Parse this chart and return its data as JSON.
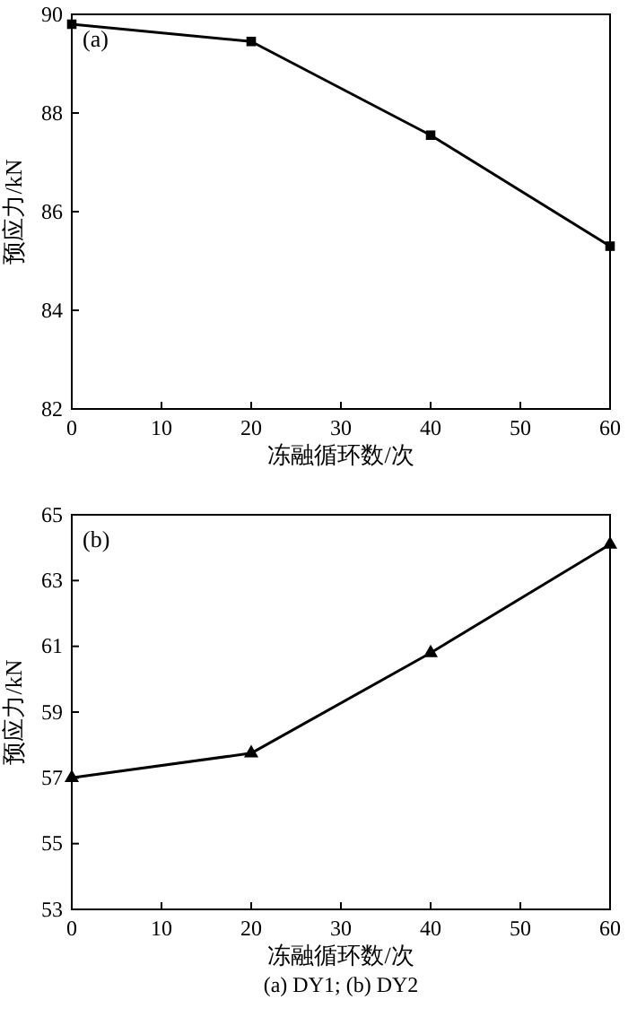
{
  "chart_data": [
    {
      "type": "line",
      "x": [
        0,
        20,
        40,
        60
      ],
      "values": [
        89.8,
        89.45,
        87.55,
        85.3
      ],
      "color": "#000000",
      "marker": "square",
      "line_style": "solid",
      "xlim": [
        0,
        60
      ],
      "xticks": [
        0,
        10,
        20,
        30,
        40,
        50,
        60
      ],
      "ylim": [
        82,
        90
      ],
      "yticks": [
        82,
        84,
        86,
        88,
        90
      ],
      "xlabel": "冻融循环数/次",
      "ylabel": "预应力/kN",
      "annotations": [
        "(a)"
      ],
      "grid": false
    },
    {
      "type": "line",
      "x": [
        0,
        20,
        40,
        60
      ],
      "values": [
        57.0,
        57.75,
        60.8,
        64.1
      ],
      "color": "#000000",
      "marker": "triangle",
      "line_style": "solid",
      "xlim": [
        0,
        60
      ],
      "xticks": [
        0,
        10,
        20,
        30,
        40,
        50,
        60
      ],
      "ylim": [
        53,
        65
      ],
      "yticks": [
        53,
        55,
        57,
        59,
        61,
        63,
        65
      ],
      "xlabel": "冻融循环数/次",
      "ylabel": "预应力/kN",
      "annotations": [
        "(b)",
        "(a) DY1; (b) DY2"
      ],
      "grid": false
    }
  ]
}
